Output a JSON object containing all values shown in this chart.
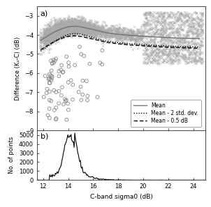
{
  "xlim": [
    11.5,
    25
  ],
  "ylim_a": [
    -9,
    -2.5
  ],
  "ylim_b": [
    0,
    5500
  ],
  "yticks_a": [
    -3,
    -4,
    -5,
    -6,
    -7,
    -8,
    -9
  ],
  "yticks_b": [
    0,
    1000,
    2000,
    3000,
    4000,
    5000
  ],
  "xticks": [
    12,
    14,
    16,
    18,
    20,
    22,
    24
  ],
  "xlabel": "C-band sigma0 (dB)",
  "ylabel_a": "Difference (Kᵤ-C) (dB)",
  "ylabel_b": "No. of points",
  "legend_labels": [
    "Mean",
    "Mean - 2 std. dev.",
    "Mean - 0.5 dB"
  ],
  "panel_a_label": "a)",
  "panel_b_label": "b)",
  "cross_color": "#aaaaaa",
  "circle_color": "#888888",
  "mean_color": "#777777",
  "line_color": "black",
  "background": "white",
  "mean_curve_x": [
    12.0,
    12.5,
    13.0,
    13.5,
    14.0,
    14.5,
    15.0,
    15.5,
    16.0,
    16.5,
    17.0,
    17.5,
    18.0,
    18.5,
    19.0,
    19.5,
    20.0,
    20.5,
    21.0,
    21.5,
    22.0,
    22.5,
    23.0,
    23.5,
    24.0,
    24.5
  ],
  "mean_curve_y": [
    -4.2,
    -4.0,
    -3.82,
    -3.68,
    -3.58,
    -3.55,
    -3.58,
    -3.65,
    -3.72,
    -3.8,
    -3.88,
    -3.93,
    -3.97,
    -4.0,
    -4.03,
    -4.05,
    -4.07,
    -4.09,
    -4.11,
    -4.13,
    -4.15,
    -4.16,
    -4.17,
    -4.18,
    -4.19,
    -4.2
  ],
  "std_curve_y": [
    0.28,
    0.26,
    0.24,
    0.22,
    0.2,
    0.19,
    0.19,
    0.2,
    0.21,
    0.22,
    0.22,
    0.22,
    0.22,
    0.22,
    0.22,
    0.22,
    0.22,
    0.22,
    0.22,
    0.22,
    0.22,
    0.22,
    0.22,
    0.22,
    0.22,
    0.22
  ]
}
